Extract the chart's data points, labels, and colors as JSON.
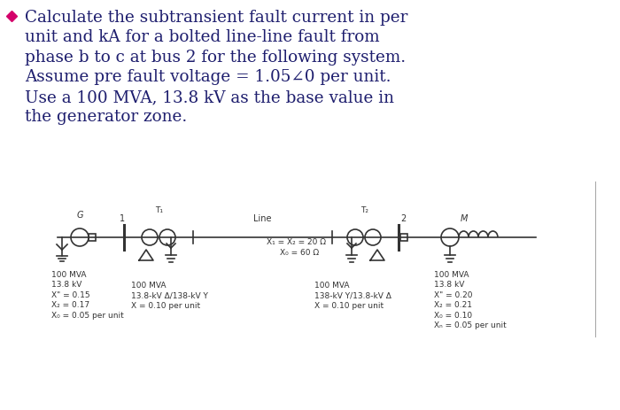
{
  "bg_color": "#ffffff",
  "bullet_color": "#d4006a",
  "text_color": "#1e1e6e",
  "diag_color": "#333333",
  "title_text": "Calculate the subtransient fault current in per\nunit and kA for a bolted line-line fault from\nphase b to c at bus 2 for the following system.\nAssume pre fault voltage = 1.05∠0 per unit.\nUse a 100 MVA, 13.8 kV as the base value in\nthe generator zone.",
  "gen_data": [
    "100 MVA",
    "13.8 kV",
    "X\" = 0.15",
    "X₂ = 0.17",
    "X₀ = 0.05 per unit"
  ],
  "T1_data": [
    "100 MVA",
    "13.8-kV Δ/138-kV Y",
    "X = 0.10 per unit"
  ],
  "T2_data": [
    "100 MVA",
    "138-kV Y/13.8-kV Δ",
    "X = 0.10 per unit"
  ],
  "motor_data": [
    "100 MVA",
    "13.8 kV",
    "X\" = 0.20",
    "X₂ = 0.21",
    "X₀ = 0.10",
    "Xₙ = 0.05 per unit"
  ],
  "line_X1X2": "X₁ = X₂ = 20 Ω",
  "line_X0": "X₀ = 60 Ω",
  "G_label": "G",
  "bus1_label": "1",
  "T1_label": "T₁",
  "line_label": "Line",
  "T2_label": "T₂",
  "bus2_label": "2",
  "M_label": "M",
  "border_color": "#aaaaaa",
  "diag_lw": 1.2,
  "font_title": 13.2,
  "font_diag": 7.0
}
